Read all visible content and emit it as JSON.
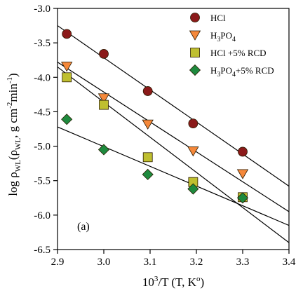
{
  "chart_data": {
    "type": "scatter",
    "title": "",
    "xlabel": {
      "base": "10",
      "sup": "3",
      "rest": "/T (T, K",
      "sup2": "o",
      "end": ")"
    },
    "ylabel": {
      "p1": "log ρ",
      "sub1": "WL",
      "p2": "(ρ",
      "sub2": "WL",
      "p3": ", g cm",
      "sup1": "-2",
      "p4": "min",
      "sup2": "-1",
      "p5": ")"
    },
    "panel_label": "(a)",
    "xlim": [
      2.9,
      3.4
    ],
    "ylim": [
      -6.5,
      -3.0
    ],
    "x_ticks": [
      "2.9",
      "3.0",
      "3.1",
      "3.2",
      "3.3",
      "3.4"
    ],
    "y_ticks": [
      "-3.0",
      "-3.5",
      "-4.0",
      "-4.5",
      "-5.0",
      "-5.5",
      "-6.0",
      "-6.5"
    ],
    "x_tick_values": [
      2.9,
      3.0,
      3.1,
      3.2,
      3.3,
      3.4
    ],
    "y_tick_values": [
      -3.0,
      -3.5,
      -4.0,
      -4.5,
      -5.0,
      -5.5,
      -6.0,
      -6.5
    ],
    "grid": false,
    "legend_position": "top-right",
    "series": [
      {
        "key": "hcl",
        "name": "HCl",
        "legend": [
          {
            "t": "HCl"
          }
        ],
        "marker": "circle",
        "color": "#8b1a1a",
        "x": [
          2.92,
          3.0,
          3.095,
          3.193,
          3.3
        ],
        "y": [
          -3.37,
          -3.66,
          -4.2,
          -4.67,
          -5.08
        ],
        "fit": [
          [
            2.9,
            -3.25
          ],
          [
            3.4,
            -5.58
          ]
        ]
      },
      {
        "key": "h3po4",
        "name": "H3PO4",
        "legend": [
          {
            "t": "H"
          },
          {
            "t": "3",
            "sub": true
          },
          {
            "t": "PO"
          },
          {
            "t": "4",
            "sub": true
          }
        ],
        "marker": "triangle-down",
        "color": "#f5883a",
        "x": [
          2.92,
          3.0,
          3.095,
          3.193,
          3.3
        ],
        "y": [
          -3.84,
          -4.3,
          -4.68,
          -5.07,
          -5.4
        ],
        "fit": [
          [
            2.9,
            -3.78
          ],
          [
            3.4,
            -5.95
          ]
        ]
      },
      {
        "key": "hcl-rcd",
        "name": "HCl +5% RCD",
        "legend": [
          {
            "t": "HCl +5% RCD"
          }
        ],
        "marker": "square",
        "color": "#bfbf30",
        "x": [
          2.92,
          3.0,
          3.095,
          3.193,
          3.3
        ],
        "y": [
          -4.0,
          -4.4,
          -5.16,
          -5.52,
          -5.74
        ],
        "fit": [
          [
            2.9,
            -3.85
          ],
          [
            3.4,
            -6.4
          ]
        ]
      },
      {
        "key": "h3po4-rcd",
        "name": "H3PO4+5% RCD",
        "legend": [
          {
            "t": "H"
          },
          {
            "t": "3",
            "sub": true
          },
          {
            "t": "PO"
          },
          {
            "t": "4",
            "sub": true
          },
          {
            "t": "+5% RCD"
          }
        ],
        "marker": "diamond",
        "color": "#1e8a3e",
        "x": [
          2.92,
          3.0,
          3.095,
          3.193,
          3.3
        ],
        "y": [
          -4.61,
          -5.05,
          -5.41,
          -5.62,
          -5.75
        ],
        "fit": [
          [
            2.9,
            -4.72
          ],
          [
            3.4,
            -6.15
          ]
        ]
      }
    ]
  }
}
